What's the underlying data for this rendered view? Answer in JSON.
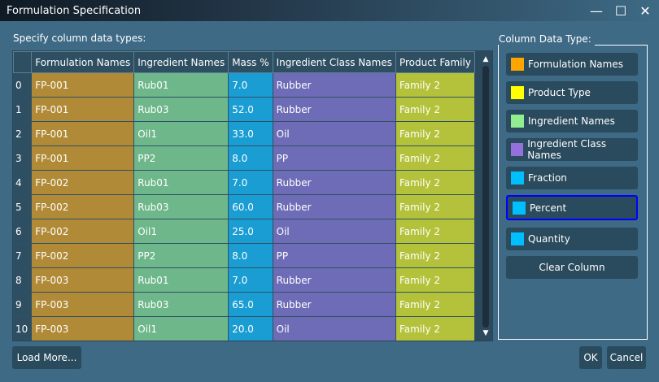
{
  "window": {
    "title": "Formulation Specification",
    "minimize_icon": "minimize-icon",
    "maximize_icon": "maximize-icon",
    "close_icon": "close-icon"
  },
  "left": {
    "label": "Specify column data types:"
  },
  "table": {
    "headers": [
      "",
      "Formulation Names",
      "Ingredient Names",
      "Mass %",
      "Ingredient Class Names",
      "Product Family"
    ],
    "rows": [
      [
        "0",
        "FP-001",
        "Rub01",
        "7.0",
        "Rubber",
        "Family 2"
      ],
      [
        "1",
        "FP-001",
        "Rub03",
        "52.0",
        "Rubber",
        "Family 2"
      ],
      [
        "2",
        "FP-001",
        "Oil1",
        "33.0",
        "Oil",
        "Family 2"
      ],
      [
        "3",
        "FP-001",
        "PP2",
        "8.0",
        "PP",
        "Family 2"
      ],
      [
        "4",
        "FP-002",
        "Rub01",
        "7.0",
        "Rubber",
        "Family 2"
      ],
      [
        "5",
        "FP-002",
        "Rub03",
        "60.0",
        "Rubber",
        "Family 2"
      ],
      [
        "6",
        "FP-002",
        "Oil1",
        "25.0",
        "Oil",
        "Family 2"
      ],
      [
        "7",
        "FP-002",
        "PP2",
        "8.0",
        "PP",
        "Family 2"
      ],
      [
        "8",
        "FP-003",
        "Rub01",
        "7.0",
        "Rubber",
        "Family 2"
      ],
      [
        "9",
        "FP-003",
        "Rub03",
        "65.0",
        "Rubber",
        "Family 2"
      ],
      [
        "10",
        "FP-003",
        "Oil1",
        "20.0",
        "Oil",
        "Family 2"
      ]
    ],
    "column_colors": {
      "formulation": "#b08a36",
      "ingredient": "#6db78a",
      "mass": "#1a9dd3",
      "class": "#6e6cb6",
      "family": "#b3c23a"
    }
  },
  "right": {
    "label": "Column Data Type:",
    "types": [
      {
        "label": "Formulation Names",
        "color": "#ffa500"
      },
      {
        "label": "Product Type",
        "color": "#ffff00"
      },
      {
        "label": "Ingredient Names",
        "color": "#90ee90"
      },
      {
        "label": "Ingredient Class Names",
        "color": "#9370db"
      },
      {
        "label": "Fraction",
        "color": "#00bfff"
      },
      {
        "label": "Percent",
        "color": "#00bfff",
        "selected": true
      },
      {
        "label": "Quantity",
        "color": "#00bfff"
      }
    ],
    "clear_label": "Clear Column"
  },
  "footer": {
    "load_more": "Load More...",
    "ok": "OK",
    "cancel": "Cancel"
  }
}
